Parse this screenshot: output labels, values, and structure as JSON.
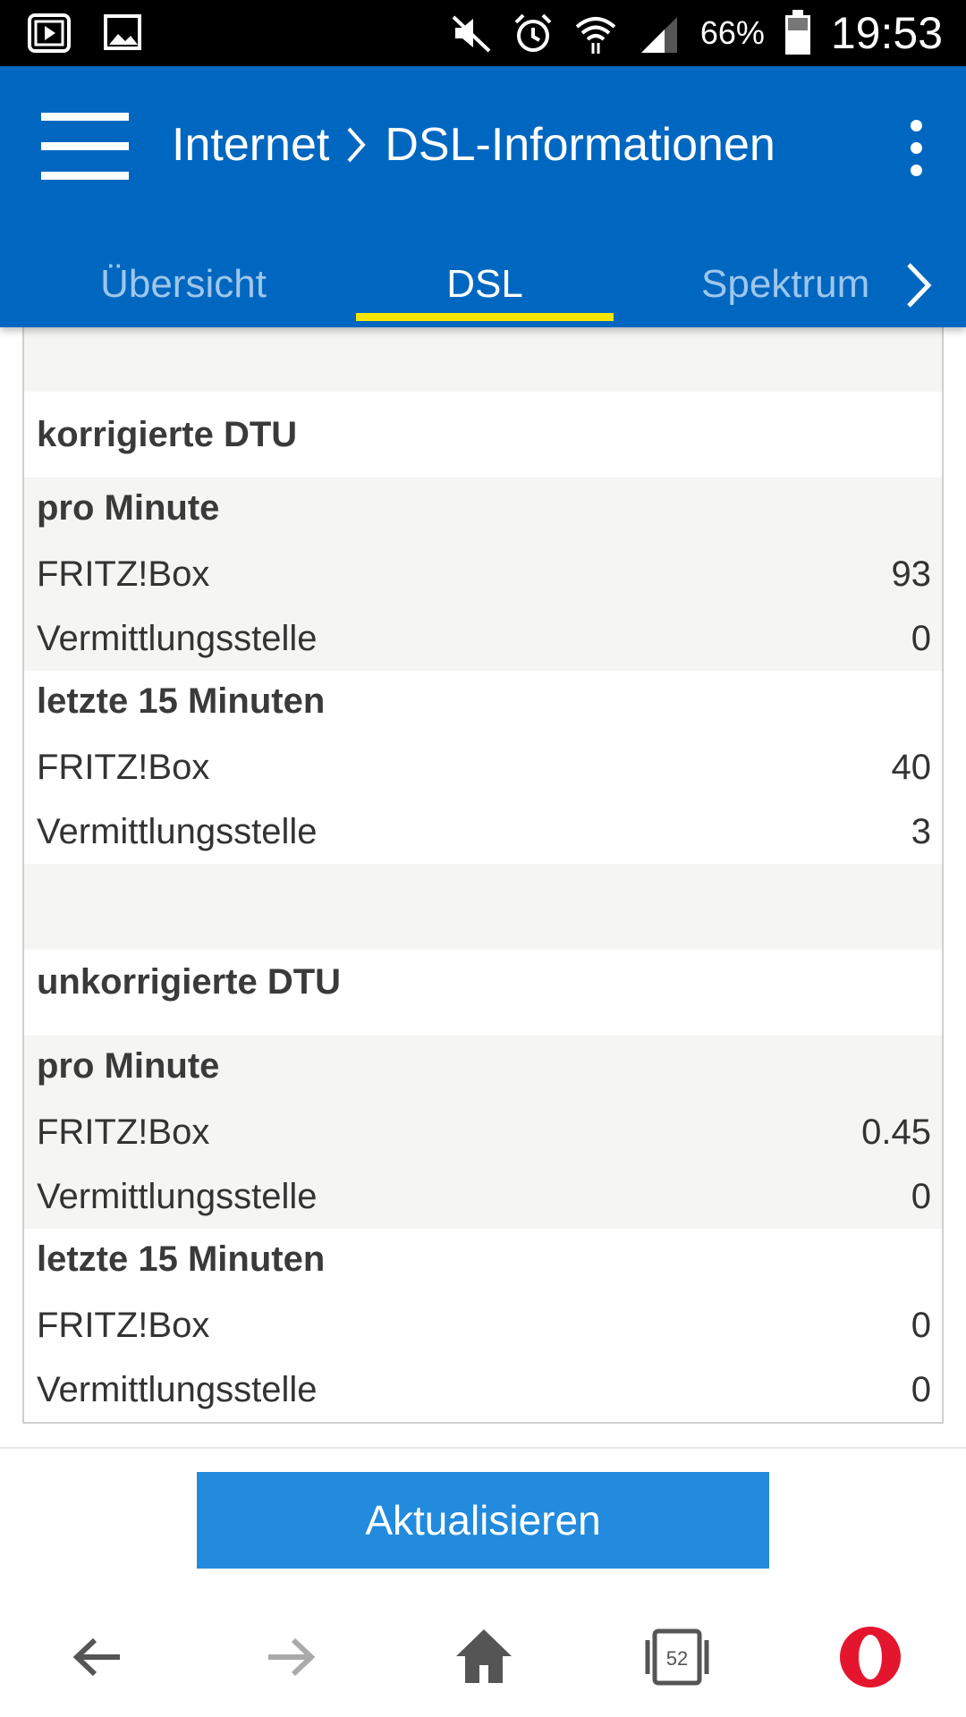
{
  "status_bar": {
    "battery": "66%",
    "time": "19:53",
    "icons": [
      "media-icon",
      "image-icon",
      "mute-icon",
      "alarm-icon",
      "wifi-icon",
      "signal-icon",
      "battery-icon"
    ]
  },
  "appbar": {
    "breadcrumb_parent": "Internet",
    "breadcrumb_current": "DSL-Informationen",
    "background": "#0067c0"
  },
  "tabs": [
    {
      "label": "Übersicht",
      "active": false
    },
    {
      "label": "DSL",
      "active": true
    },
    {
      "label": "Spektrum",
      "active": false
    }
  ],
  "sections": {
    "corrected": {
      "title": "korrigierte DTU",
      "per_minute": {
        "label": "pro Minute",
        "fritzbox_label": "FRITZ!Box",
        "fritzbox_value": "93",
        "exchange_label": "Vermittlungsstelle",
        "exchange_value": "0"
      },
      "last15": {
        "label": "letzte 15 Minuten",
        "fritzbox_label": "FRITZ!Box",
        "fritzbox_value": "40",
        "exchange_label": "Vermittlungsstelle",
        "exchange_value": "3"
      }
    },
    "uncorrected": {
      "title": "unkorrigierte DTU",
      "per_minute": {
        "label": "pro Minute",
        "fritzbox_label": "FRITZ!Box",
        "fritzbox_value": "0.45",
        "exchange_label": "Vermittlungsstelle",
        "exchange_value": "0"
      },
      "last15": {
        "label": "letzte 15 Minuten",
        "fritzbox_label": "FRITZ!Box",
        "fritzbox_value": "0",
        "exchange_label": "Vermittlungsstelle",
        "exchange_value": "0"
      }
    }
  },
  "actions": {
    "refresh_label": "Aktualisieren",
    "button_color": "#228bdd"
  },
  "browser_nav": {
    "tab_count": "52",
    "icons": [
      "back-arrow-icon",
      "forward-arrow-icon",
      "home-icon",
      "tabs-icon",
      "opera-icon"
    ]
  }
}
